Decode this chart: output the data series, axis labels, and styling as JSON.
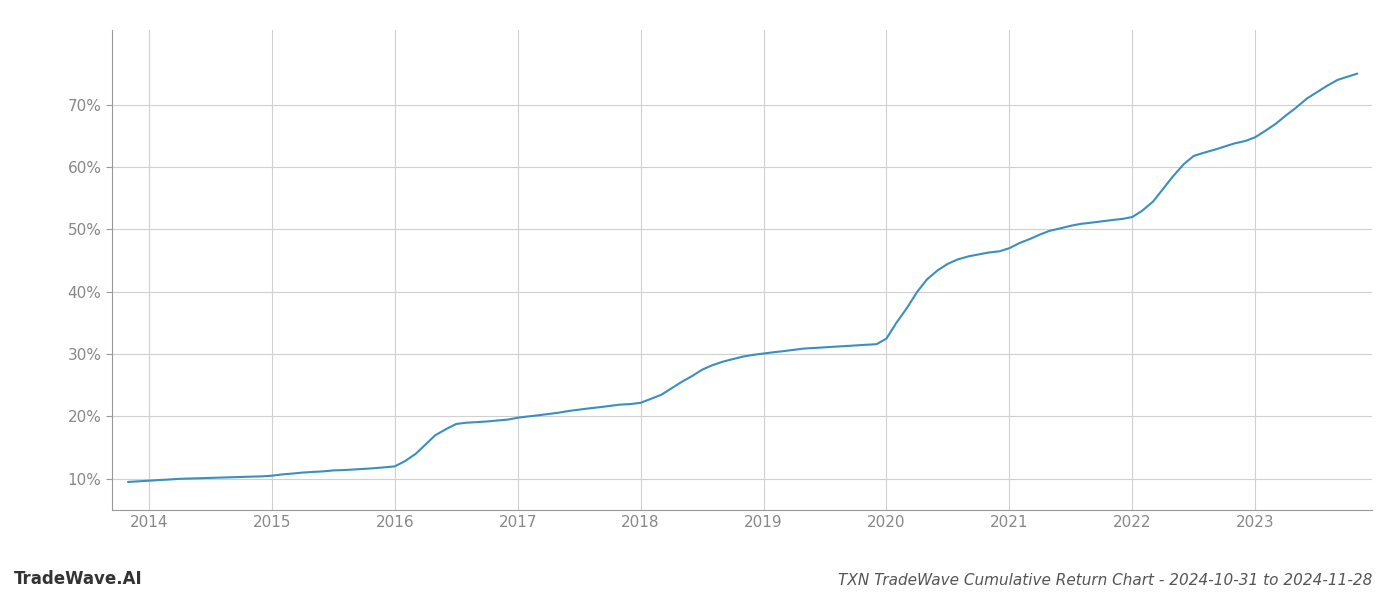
{
  "title": "TXN TradeWave Cumulative Return Chart - 2024-10-31 to 2024-11-28",
  "watermark": "TradeWave.AI",
  "line_color": "#3a8fc0",
  "line_width": 1.5,
  "background_color": "#ffffff",
  "grid_color": "#d0d0d0",
  "data_x": [
    2013.83,
    2014.0,
    2014.08,
    2014.17,
    2014.25,
    2014.33,
    2014.42,
    2014.5,
    2014.58,
    2014.67,
    2014.75,
    2014.83,
    2014.92,
    2015.0,
    2015.08,
    2015.17,
    2015.25,
    2015.33,
    2015.42,
    2015.5,
    2015.58,
    2015.67,
    2015.75,
    2015.83,
    2015.92,
    2016.0,
    2016.08,
    2016.17,
    2016.25,
    2016.33,
    2016.42,
    2016.5,
    2016.58,
    2016.67,
    2016.75,
    2016.83,
    2016.92,
    2017.0,
    2017.08,
    2017.17,
    2017.25,
    2017.33,
    2017.42,
    2017.5,
    2017.58,
    2017.67,
    2017.75,
    2017.83,
    2017.92,
    2018.0,
    2018.08,
    2018.17,
    2018.25,
    2018.33,
    2018.42,
    2018.5,
    2018.58,
    2018.67,
    2018.75,
    2018.83,
    2018.92,
    2019.0,
    2019.08,
    2019.17,
    2019.25,
    2019.33,
    2019.42,
    2019.5,
    2019.58,
    2019.67,
    2019.75,
    2019.83,
    2019.92,
    2020.0,
    2020.08,
    2020.17,
    2020.25,
    2020.33,
    2020.42,
    2020.5,
    2020.58,
    2020.67,
    2020.75,
    2020.83,
    2020.92,
    2021.0,
    2021.08,
    2021.17,
    2021.25,
    2021.33,
    2021.42,
    2021.5,
    2021.58,
    2021.67,
    2021.75,
    2021.83,
    2021.92,
    2022.0,
    2022.08,
    2022.17,
    2022.25,
    2022.33,
    2022.42,
    2022.5,
    2022.58,
    2022.67,
    2022.75,
    2022.83,
    2022.92,
    2023.0,
    2023.08,
    2023.17,
    2023.25,
    2023.33,
    2023.42,
    2023.5,
    2023.58,
    2023.67,
    2023.75,
    2023.83
  ],
  "data_y": [
    9.5,
    9.7,
    9.8,
    9.9,
    10.0,
    10.05,
    10.1,
    10.15,
    10.2,
    10.25,
    10.3,
    10.35,
    10.4,
    10.5,
    10.7,
    10.85,
    11.0,
    11.1,
    11.2,
    11.35,
    11.4,
    11.5,
    11.6,
    11.7,
    11.85,
    12.0,
    12.8,
    14.0,
    15.5,
    17.0,
    18.0,
    18.8,
    19.0,
    19.1,
    19.2,
    19.35,
    19.5,
    19.8,
    20.0,
    20.2,
    20.4,
    20.6,
    20.9,
    21.1,
    21.3,
    21.5,
    21.7,
    21.9,
    22.0,
    22.2,
    22.8,
    23.5,
    24.5,
    25.5,
    26.5,
    27.5,
    28.2,
    28.8,
    29.2,
    29.6,
    29.9,
    30.1,
    30.3,
    30.5,
    30.7,
    30.9,
    31.0,
    31.1,
    31.2,
    31.3,
    31.4,
    31.5,
    31.6,
    32.5,
    35.0,
    37.5,
    40.0,
    42.0,
    43.5,
    44.5,
    45.2,
    45.7,
    46.0,
    46.3,
    46.5,
    47.0,
    47.8,
    48.5,
    49.2,
    49.8,
    50.2,
    50.6,
    50.9,
    51.1,
    51.3,
    51.5,
    51.7,
    52.0,
    53.0,
    54.5,
    56.5,
    58.5,
    60.5,
    61.8,
    62.3,
    62.8,
    63.3,
    63.8,
    64.2,
    64.8,
    65.8,
    67.0,
    68.3,
    69.5,
    71.0,
    72.0,
    73.0,
    74.0,
    74.5,
    75.0
  ],
  "ylim": [
    5,
    82
  ],
  "yticks": [
    10,
    20,
    30,
    40,
    50,
    60,
    70
  ],
  "xlim": [
    2013.7,
    2023.95
  ],
  "xticks": [
    2014,
    2015,
    2016,
    2017,
    2018,
    2019,
    2020,
    2021,
    2022,
    2023
  ],
  "title_fontsize": 11,
  "tick_fontsize": 11,
  "watermark_fontsize": 12
}
